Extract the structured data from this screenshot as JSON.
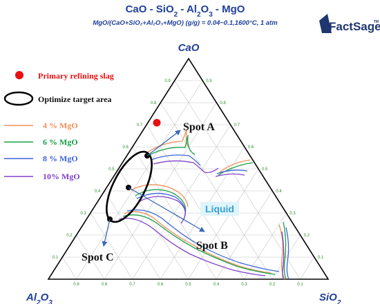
{
  "title": {
    "parts": [
      "CaO - SiO",
      "2",
      " - Al",
      "2",
      "O",
      "3",
      " - MgO"
    ]
  },
  "subtitle": "MgO/(CaO+SiO₂+Al₂O₃+MgO) (g/g) = 0.04~0.1,1600°C, 1 atm",
  "logo": {
    "text": "FactSage",
    "trademark": "TM"
  },
  "vertices": {
    "top": "CaO",
    "left": [
      "Al",
      "2",
      "O",
      "3"
    ],
    "right": [
      "SiO",
      "2"
    ]
  },
  "ticks": [
    "0.1",
    "0.2",
    "0.3",
    "0.4",
    "0.5",
    "0.6",
    "0.7",
    "0.8",
    "0.9"
  ],
  "legend": [
    {
      "label": "Primary refining slag",
      "color": "#e81010",
      "marker": "dot"
    },
    {
      "label": "Optimize target area",
      "color": "#000000",
      "marker": "ellipse"
    },
    {
      "label": "4  % MgO",
      "color": "#f0905a",
      "marker": "line"
    },
    {
      "label": "6  % MgO",
      "color": "#18a048",
      "marker": "line"
    },
    {
      "label": "8  % MgO",
      "color": "#3c64d8",
      "marker": "line"
    },
    {
      "label": "10% MgO",
      "color": "#8040c8",
      "marker": "line"
    }
  ],
  "annotations": {
    "spot_a": "Spot A",
    "spot_b": "Spot B",
    "spot_c": "Spot C",
    "liquid": "Liquid"
  },
  "colors": {
    "title": "#1f3f9a",
    "arrow": "#3a6ab8",
    "grid": "#b0b0b0",
    "axis": "#000000"
  }
}
